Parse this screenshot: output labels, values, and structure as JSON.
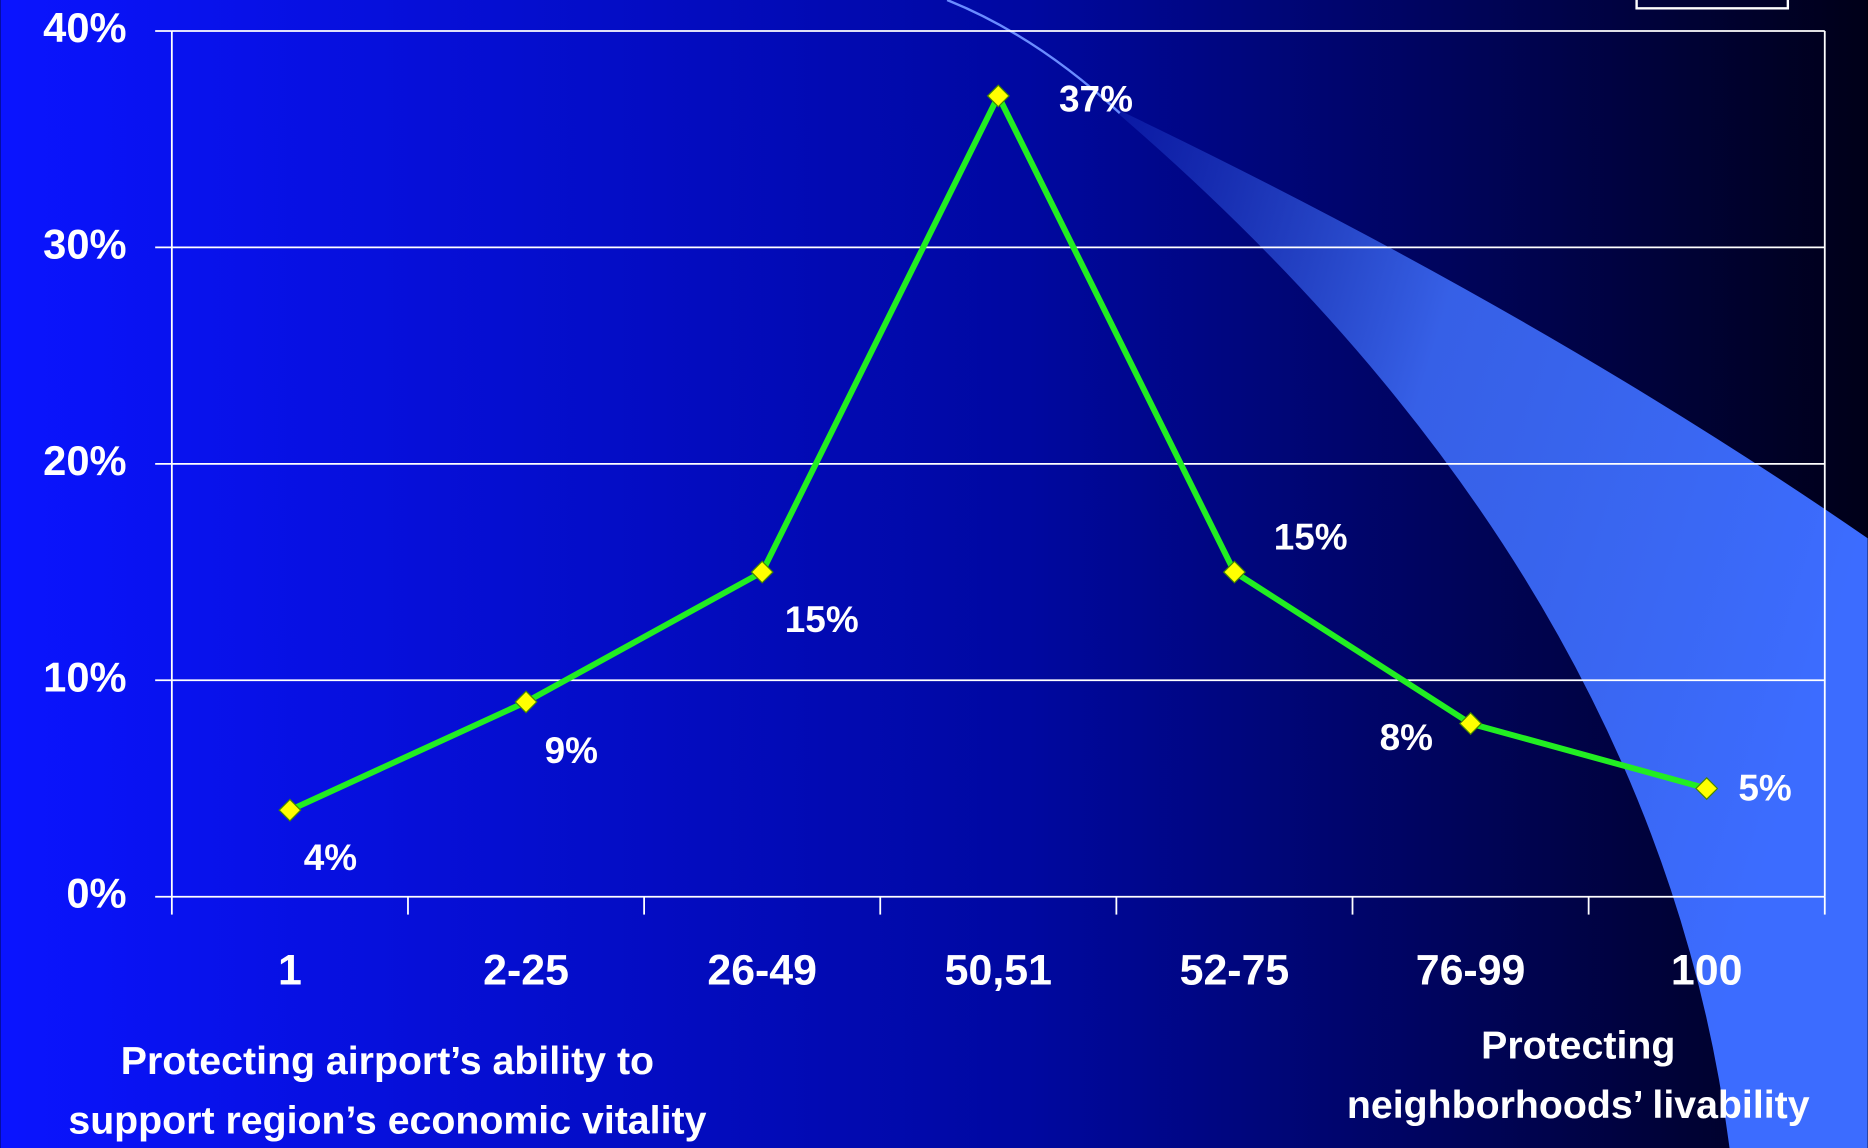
{
  "chart_data": {
    "type": "line",
    "categories": [
      "1",
      "2-25",
      "26-49",
      "50,51",
      "52-75",
      "76-99",
      "100"
    ],
    "series": [
      {
        "color": "#22ee22",
        "marker_color": "#ffff00",
        "values": [
          4,
          9,
          15,
          37,
          15,
          8,
          5
        ],
        "value_labels": [
          "4%",
          "9%",
          "15%",
          "37%",
          "15%",
          "8%",
          "5%"
        ]
      }
    ],
    "ylim": [
      0,
      40
    ],
    "yticks": [
      {
        "value": 0,
        "label": "0%"
      },
      {
        "value": 10,
        "label": "10%"
      },
      {
        "value": 20,
        "label": "20%"
      },
      {
        "value": 30,
        "label": "30%"
      },
      {
        "value": 40,
        "label": "40%"
      }
    ],
    "grid": true,
    "annotations": [
      {
        "lines": [
          "Protecting airport’s ability to",
          "support region’s economic vitality"
        ]
      },
      {
        "lines": [
          "Protecting",
          "neighborhoods’ livability"
        ]
      }
    ]
  }
}
